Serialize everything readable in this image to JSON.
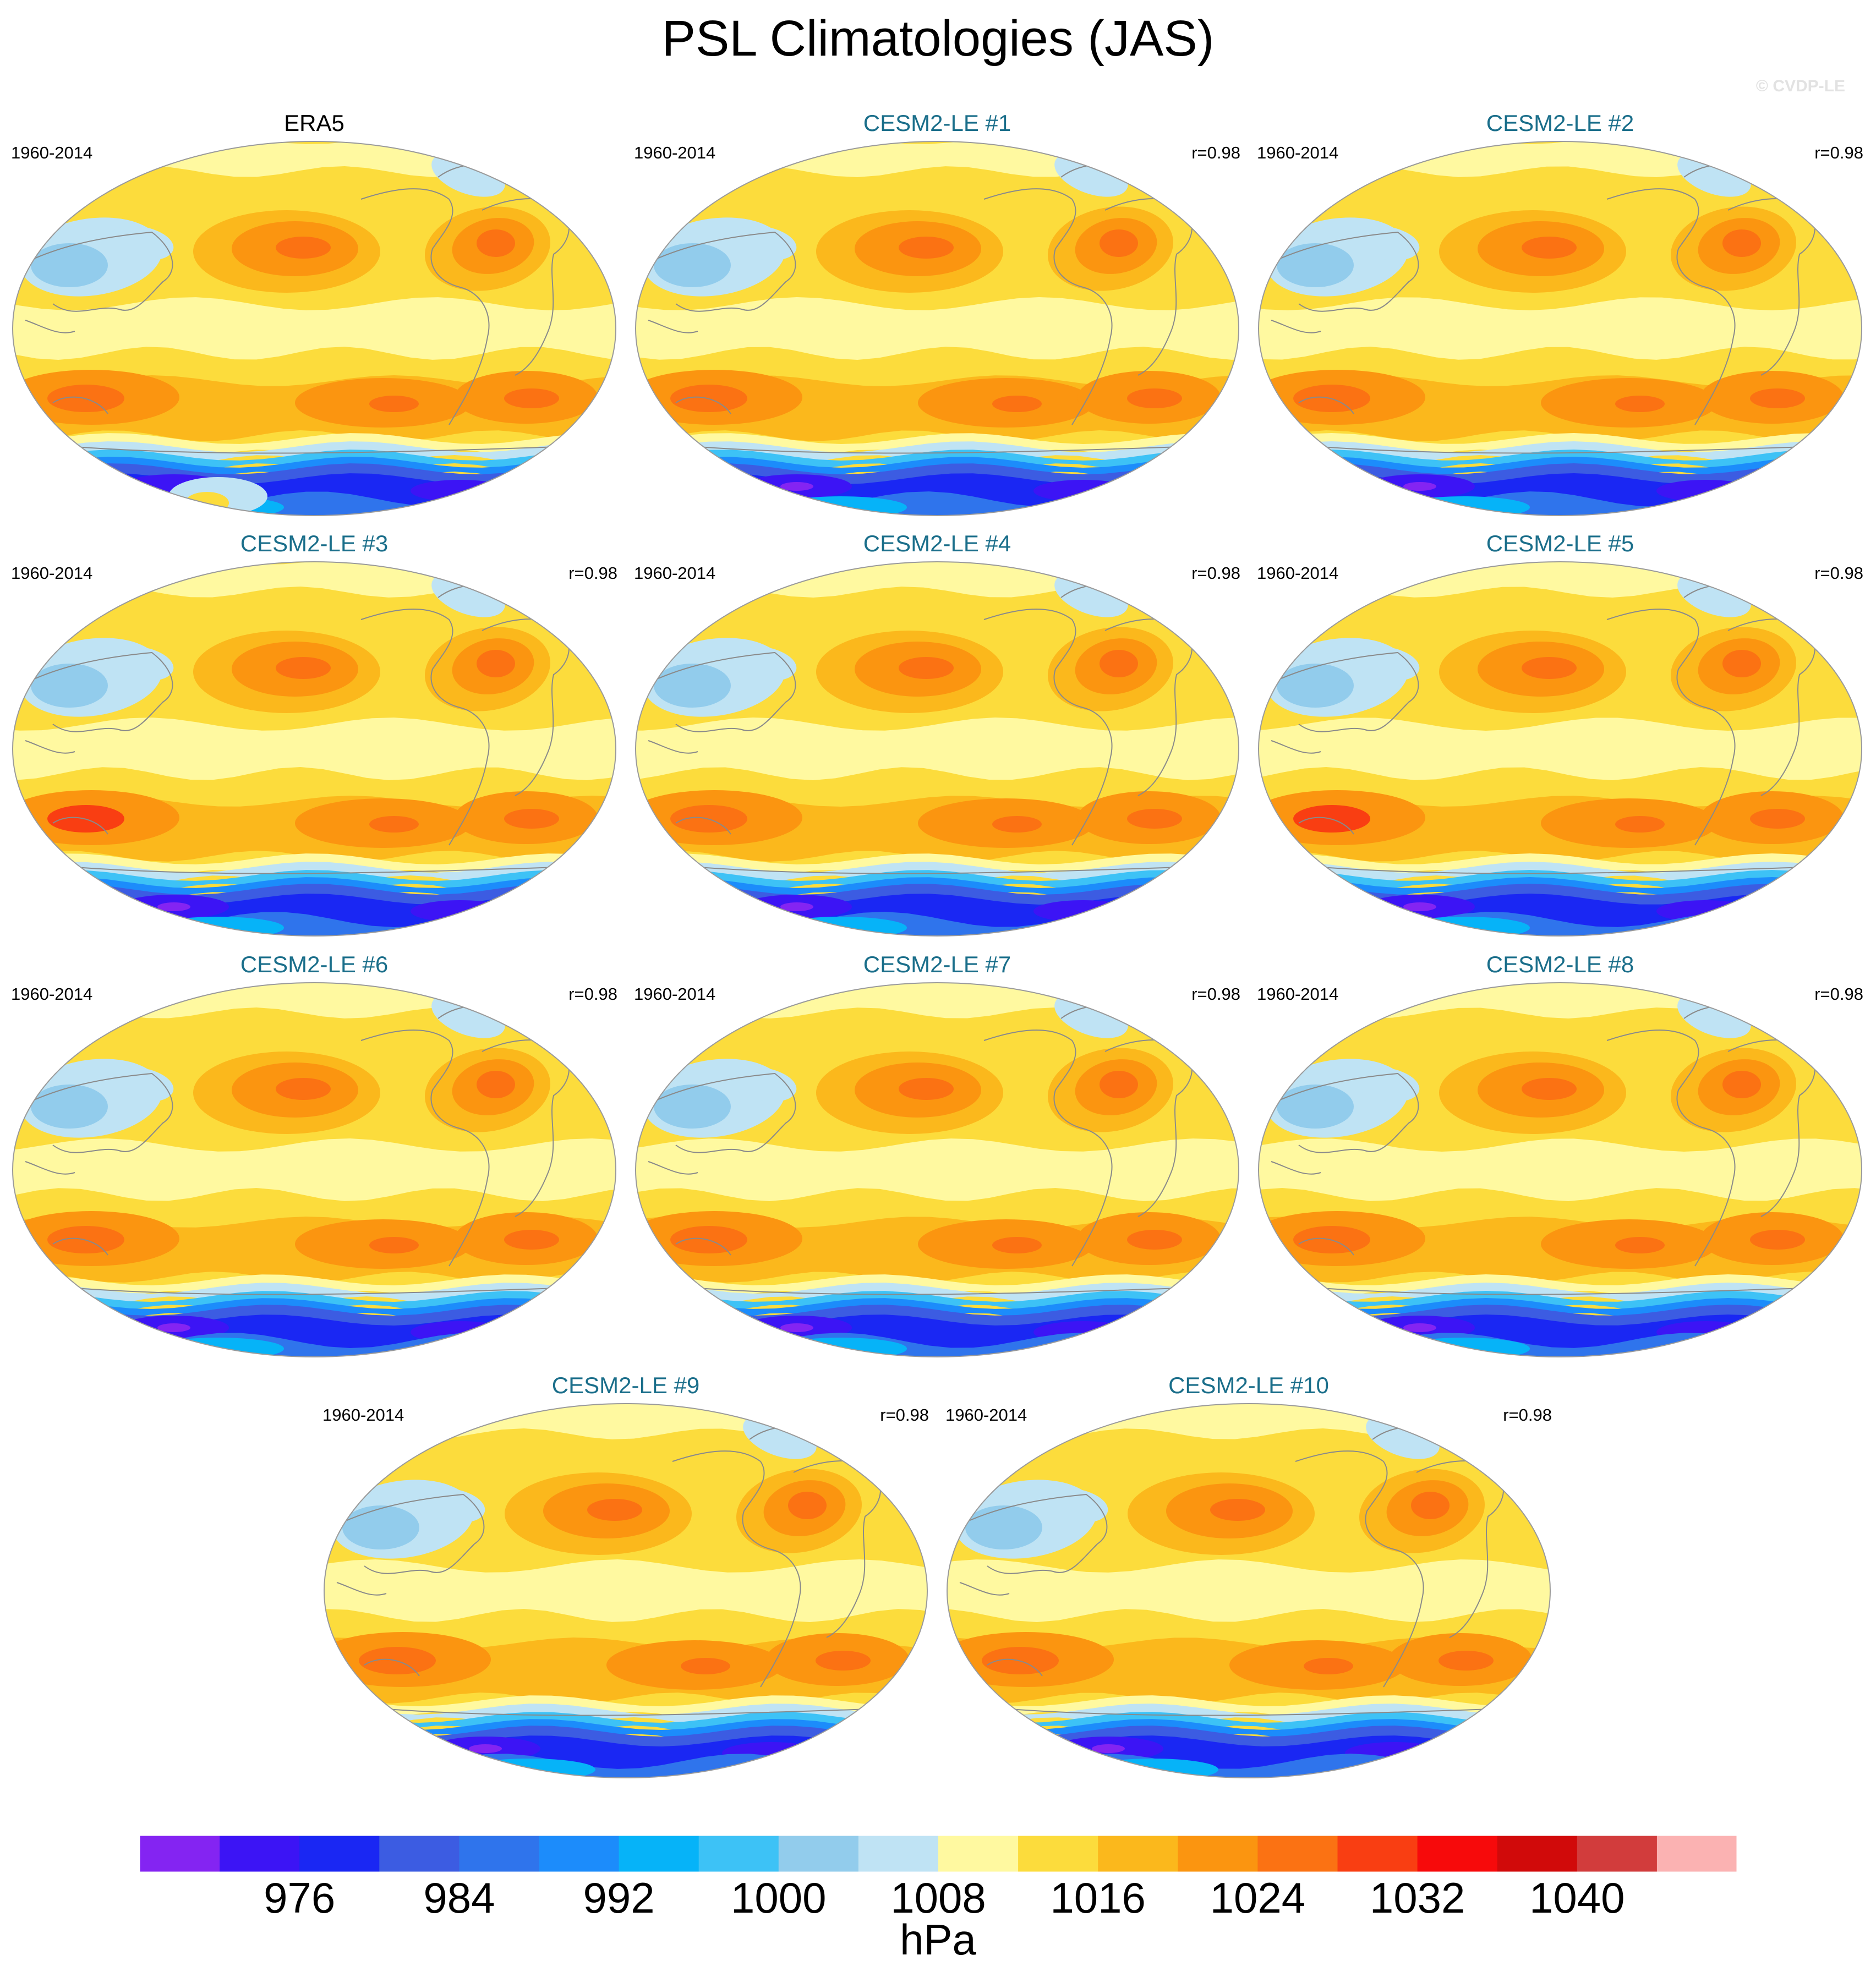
{
  "title": "PSL Climatologies (JAS)",
  "watermark": "© CVDP-LE",
  "panels": [
    {
      "name": "ERA5",
      "period": "1960-2014",
      "corr": "",
      "observed": true,
      "variant": 0
    },
    {
      "name": "CESM2-LE #1",
      "period": "1960-2014",
      "corr": "r=0.98",
      "observed": false,
      "variant": 1
    },
    {
      "name": "CESM2-LE #2",
      "period": "1960-2014",
      "corr": "r=0.98",
      "observed": false,
      "variant": 2
    },
    {
      "name": "CESM2-LE #3",
      "period": "1960-2014",
      "corr": "r=0.98",
      "observed": false,
      "variant": 3
    },
    {
      "name": "CESM2-LE #4",
      "period": "1960-2014",
      "corr": "r=0.98",
      "observed": false,
      "variant": 4
    },
    {
      "name": "CESM2-LE #5",
      "period": "1960-2014",
      "corr": "r=0.98",
      "observed": false,
      "variant": 5
    },
    {
      "name": "CESM2-LE #6",
      "period": "1960-2014",
      "corr": "r=0.98",
      "observed": false,
      "variant": 6
    },
    {
      "name": "CESM2-LE #7",
      "period": "1960-2014",
      "corr": "r=0.98",
      "observed": false,
      "variant": 7
    },
    {
      "name": "CESM2-LE #8",
      "period": "1960-2014",
      "corr": "r=0.98",
      "observed": false,
      "variant": 8
    },
    {
      "name": "CESM2-LE #9",
      "period": "1960-2014",
      "corr": "r=0.98",
      "observed": false,
      "variant": 9
    },
    {
      "name": "CESM2-LE #10",
      "period": "1960-2014",
      "corr": "r=0.98",
      "observed": false,
      "variant": 10
    }
  ],
  "colorbar": {
    "colors": [
      "#8424f2",
      "#3c14f5",
      "#1a27f3",
      "#3c5ce2",
      "#2f74ec",
      "#1c8cfb",
      "#06b3f8",
      "#3dc2f6",
      "#92ccec",
      "#bfe3f4",
      "#fff9a0",
      "#fcdc3c",
      "#fbb81c",
      "#fb9510",
      "#fb7213",
      "#f93e12",
      "#f70a0b",
      "#d10a0a",
      "#d23c3c",
      "#fbb2b2"
    ],
    "tick_labels": [
      "976",
      "984",
      "992",
      "1000",
      "1008",
      "1016",
      "1024",
      "1032",
      "1040"
    ],
    "units": "hPa"
  }
}
